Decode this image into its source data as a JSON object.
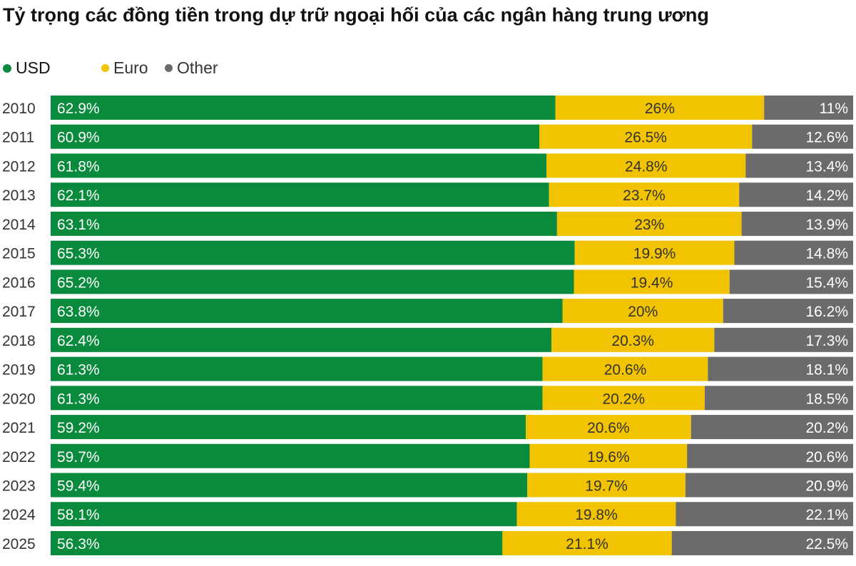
{
  "chart_data": {
    "type": "bar",
    "orientation": "horizontal",
    "stacked": true,
    "title": "Tỷ trọng các đồng tiền trong dự trữ ngoại hối của các ngân hàng trung ương",
    "categories": [
      "2010",
      "2011",
      "2012",
      "2013",
      "2014",
      "2015",
      "2016",
      "2017",
      "2018",
      "2019",
      "2020",
      "2021",
      "2022",
      "2023",
      "2024",
      "2025"
    ],
    "series": [
      {
        "name": "USD",
        "color": "#0a8a3c",
        "values": [
          62.9,
          60.9,
          61.8,
          62.1,
          63.1,
          65.3,
          65.2,
          63.8,
          62.4,
          61.3,
          61.3,
          59.2,
          59.7,
          59.4,
          58.1,
          56.3
        ],
        "labels": [
          "62.9%",
          "60.9%",
          "61.8%",
          "62.1%",
          "63.1%",
          "65.3%",
          "65.2%",
          "63.8%",
          "62.4%",
          "61.3%",
          "61.3%",
          "59.2%",
          "59.7%",
          "59.4%",
          "58.1%",
          "56.3%"
        ]
      },
      {
        "name": "Euro",
        "color": "#f2c300",
        "values": [
          26,
          26.5,
          24.8,
          23.7,
          23,
          19.9,
          19.4,
          20,
          20.3,
          20.6,
          20.2,
          20.6,
          19.6,
          19.7,
          19.8,
          21.1
        ],
        "labels": [
          "26%",
          "26.5%",
          "24.8%",
          "23.7%",
          "23%",
          "19.9%",
          "19.4%",
          "20%",
          "20.3%",
          "20.6%",
          "20.2%",
          "20.6%",
          "19.6%",
          "19.7%",
          "19.8%",
          "21.1%"
        ]
      },
      {
        "name": "Other",
        "color": "#6b6b6b",
        "values": [
          11,
          12.6,
          13.4,
          14.2,
          13.9,
          14.8,
          15.4,
          16.2,
          17.3,
          18.1,
          18.5,
          20.2,
          20.6,
          20.9,
          22.1,
          22.5
        ],
        "labels": [
          "11%",
          "12.6%",
          "13.4%",
          "14.2%",
          "13.9%",
          "14.8%",
          "15.4%",
          "16.2%",
          "17.3%",
          "18.1%",
          "18.5%",
          "20.2%",
          "20.6%",
          "20.9%",
          "22.1%",
          "22.5%"
        ]
      }
    ],
    "xlim": [
      0,
      100
    ],
    "legend": "top-left",
    "grid": false
  }
}
